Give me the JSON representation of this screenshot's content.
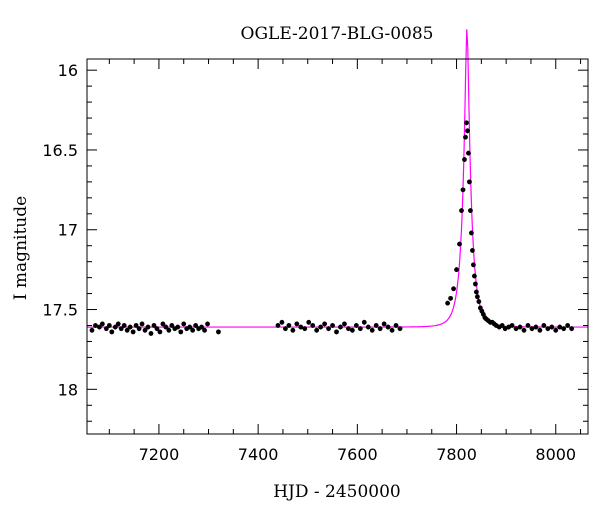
{
  "chart_data": {
    "type": "scatter",
    "title": "OGLE-2017-BLG-0085",
    "xlabel": "HJD - 2450000",
    "ylabel": "I magnitude",
    "xlim": [
      7055,
      8065
    ],
    "ylim": [
      18.28,
      15.93
    ],
    "y_inverted": true,
    "grid": false,
    "x_ticks": [
      7200,
      7400,
      7600,
      7800,
      8000
    ],
    "x_tick_labels": [
      "7200",
      "7400",
      "7600",
      "7800",
      "8000"
    ],
    "x_minor_step": 50,
    "y_ticks": [
      16,
      16.5,
      17,
      17.5,
      18
    ],
    "y_tick_labels": [
      "16",
      "16.5",
      "17",
      "17.5",
      "18"
    ],
    "y_minor_step": 0.1,
    "colors": {
      "points": "#000000",
      "model": "#ff00ff",
      "axes": "#000000"
    },
    "model": {
      "name": "",
      "kind": "microlensing-fit",
      "baseline_mag": 17.61,
      "t0": 7821,
      "u0": 0.18,
      "tE": 17.5,
      "x_range": [
        7055,
        8065
      ],
      "samples": 500
    },
    "series": [
      {
        "name": "",
        "marker": "filled-circle",
        "x": [
          7065,
          7072,
          7080,
          7086,
          7094,
          7100,
          7105,
          7112,
          7118,
          7124,
          7130,
          7136,
          7142,
          7148,
          7154,
          7160,
          7166,
          7172,
          7178,
          7184,
          7190,
          7196,
          7202,
          7208,
          7214,
          7220,
          7226,
          7232,
          7238,
          7244,
          7250,
          7256,
          7262,
          7268,
          7274,
          7280,
          7286,
          7292,
          7298,
          7320,
          7440,
          7448,
          7455,
          7462,
          7470,
          7478,
          7486,
          7494,
          7502,
          7510,
          7518,
          7526,
          7534,
          7542,
          7550,
          7558,
          7566,
          7574,
          7582,
          7590,
          7598,
          7606,
          7614,
          7622,
          7630,
          7638,
          7646,
          7654,
          7662,
          7670,
          7678,
          7686,
          7782,
          7788,
          7794,
          7800,
          7806,
          7810,
          7813,
          7816,
          7818,
          7820,
          7822,
          7824,
          7826,
          7828,
          7830,
          7832,
          7834,
          7836,
          7838,
          7840,
          7842,
          7845,
          7848,
          7851,
          7854,
          7857,
          7860,
          7864,
          7868,
          7872,
          7876,
          7880,
          7886,
          7892,
          7898,
          7905,
          7912,
          7920,
          7928,
          7936,
          7944,
          7952,
          7960,
          7968,
          7976,
          7984,
          7992,
          8000,
          8008,
          8016,
          8024,
          8032
        ],
        "y": [
          17.63,
          17.6,
          17.61,
          17.59,
          17.62,
          17.6,
          17.64,
          17.61,
          17.59,
          17.62,
          17.6,
          17.63,
          17.61,
          17.64,
          17.6,
          17.62,
          17.59,
          17.63,
          17.61,
          17.65,
          17.6,
          17.62,
          17.64,
          17.59,
          17.61,
          17.63,
          17.6,
          17.62,
          17.61,
          17.64,
          17.59,
          17.62,
          17.61,
          17.63,
          17.6,
          17.62,
          17.61,
          17.63,
          17.59,
          17.64,
          17.6,
          17.58,
          17.62,
          17.6,
          17.63,
          17.59,
          17.61,
          17.62,
          17.58,
          17.6,
          17.63,
          17.61,
          17.59,
          17.62,
          17.6,
          17.64,
          17.61,
          17.59,
          17.62,
          17.63,
          17.6,
          17.62,
          17.58,
          17.61,
          17.63,
          17.6,
          17.62,
          17.59,
          17.61,
          17.63,
          17.6,
          17.62,
          17.46,
          17.43,
          17.37,
          17.25,
          17.09,
          16.88,
          16.75,
          16.56,
          16.42,
          16.33,
          16.38,
          16.52,
          16.7,
          16.88,
          17.02,
          17.13,
          17.22,
          17.29,
          17.34,
          17.39,
          17.42,
          17.45,
          17.49,
          17.51,
          17.53,
          17.55,
          17.56,
          17.57,
          17.58,
          17.58,
          17.59,
          17.6,
          17.61,
          17.6,
          17.62,
          17.61,
          17.6,
          17.62,
          17.61,
          17.63,
          17.6,
          17.62,
          17.61,
          17.63,
          17.6,
          17.62,
          17.61,
          17.63,
          17.61,
          17.62,
          17.6,
          17.62
        ],
        "yerr": 0.015
      }
    ]
  }
}
